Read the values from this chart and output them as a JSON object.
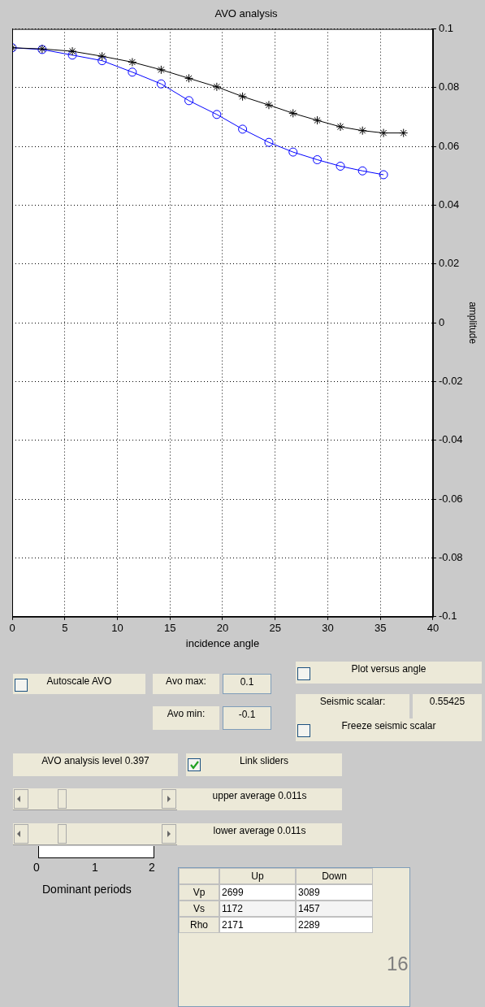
{
  "chart_data": [
    {
      "type": "line",
      "title": "AVO analysis",
      "xlabel": "incidence angle",
      "ylabel": "amplitude",
      "xlim": [
        0,
        40
      ],
      "xticks": [
        0,
        5,
        10,
        15,
        20,
        25,
        30,
        35,
        40
      ],
      "ylim": [
        -0.1,
        0.1
      ],
      "yticks": [
        -0.1,
        -0.08,
        -0.06,
        -0.04,
        -0.02,
        0,
        0.02,
        0.04,
        0.06,
        0.08,
        0.1
      ],
      "grid": true,
      "legend": false,
      "series": [
        {
          "color": "#000000",
          "marker": "cross",
          "x": [
            0,
            2.85,
            5.72,
            8.55,
            11.42,
            14.16,
            16.8,
            19.45,
            21.9,
            24.4,
            26.7,
            29.0,
            31.2,
            33.3,
            35.3,
            37.2
          ],
          "values": [
            0.0936,
            0.0932,
            0.0924,
            0.0907,
            0.0887,
            0.0861,
            0.0832,
            0.0803,
            0.077,
            0.0741,
            0.0713,
            0.0689,
            0.0667,
            0.0654,
            0.0646,
            0.0646
          ]
        },
        {
          "color": "#0000ff",
          "marker": "circle",
          "x": [
            0,
            2.85,
            5.72,
            8.55,
            11.42,
            14.16,
            16.8,
            19.45,
            21.9,
            24.4,
            26.7,
            29.0,
            31.2,
            33.3,
            35.3
          ],
          "values": [
            0.0936,
            0.093,
            0.0911,
            0.0892,
            0.0853,
            0.0813,
            0.0756,
            0.0709,
            0.0659,
            0.0614,
            0.0581,
            0.0555,
            0.0533,
            0.0517,
            0.0504
          ]
        }
      ]
    },
    {
      "type": "other",
      "annotations": [
        "Autoscale AVO",
        "Avo max:",
        "0.1",
        "Avo min:",
        "-0.1",
        "Plot versus angle",
        "Seismic scalar:",
        "0.55425",
        "Freeze seismic scalar",
        "AVO analysis level 0.397",
        "Link sliders",
        "upper average 0.011s",
        "lower average 0.011s",
        "0",
        "1",
        "2",
        "Dominant periods",
        "Up",
        "Down",
        "Vp",
        "2699",
        "3089",
        "Vs",
        "1172",
        "1457",
        "Rho",
        "2171",
        "2289",
        "16"
      ]
    }
  ]
}
